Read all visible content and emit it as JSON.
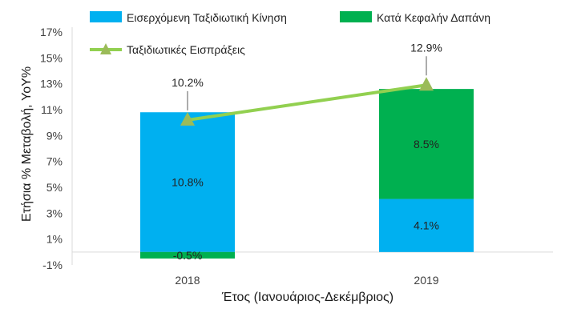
{
  "chart_data": {
    "type": "bar",
    "subtype": "stacked bar with line overlay",
    "categories": [
      "2018",
      "2019"
    ],
    "series": [
      {
        "name": "Εισερχόμενη Ταξιδιωτική Κίνηση",
        "kind": "bar",
        "color": "#00b0f0",
        "values": [
          10.8,
          4.1
        ],
        "labels": [
          "10.8%",
          "4.1%"
        ]
      },
      {
        "name": "Κατά Κεφαλήν Δαπάνη",
        "kind": "bar",
        "color": "#00b050",
        "values": [
          -0.5,
          8.5
        ],
        "labels": [
          "-0.5%",
          "8.5%"
        ]
      },
      {
        "name": "Ταξιδιωτικές Εισπράξεις",
        "kind": "line",
        "color": "#92d050",
        "marker_color": "#9bbb59",
        "values": [
          10.2,
          12.9
        ],
        "labels": [
          "10.2%",
          "12.9%"
        ]
      }
    ],
    "xlabel": "Έτος (Ιανουάριος-Δεκέμβριος)",
    "ylabel": "Ετήσια % Μεταβολή, YoY%",
    "ylim": [
      -1,
      17
    ],
    "yticks": [
      "-1%",
      "1%",
      "3%",
      "5%",
      "7%",
      "9%",
      "11%",
      "13%",
      "15%",
      "17%"
    ],
    "ytick_values": [
      -1,
      1,
      3,
      5,
      7,
      9,
      11,
      13,
      15,
      17
    ],
    "grid": false,
    "legend_position": "top"
  }
}
